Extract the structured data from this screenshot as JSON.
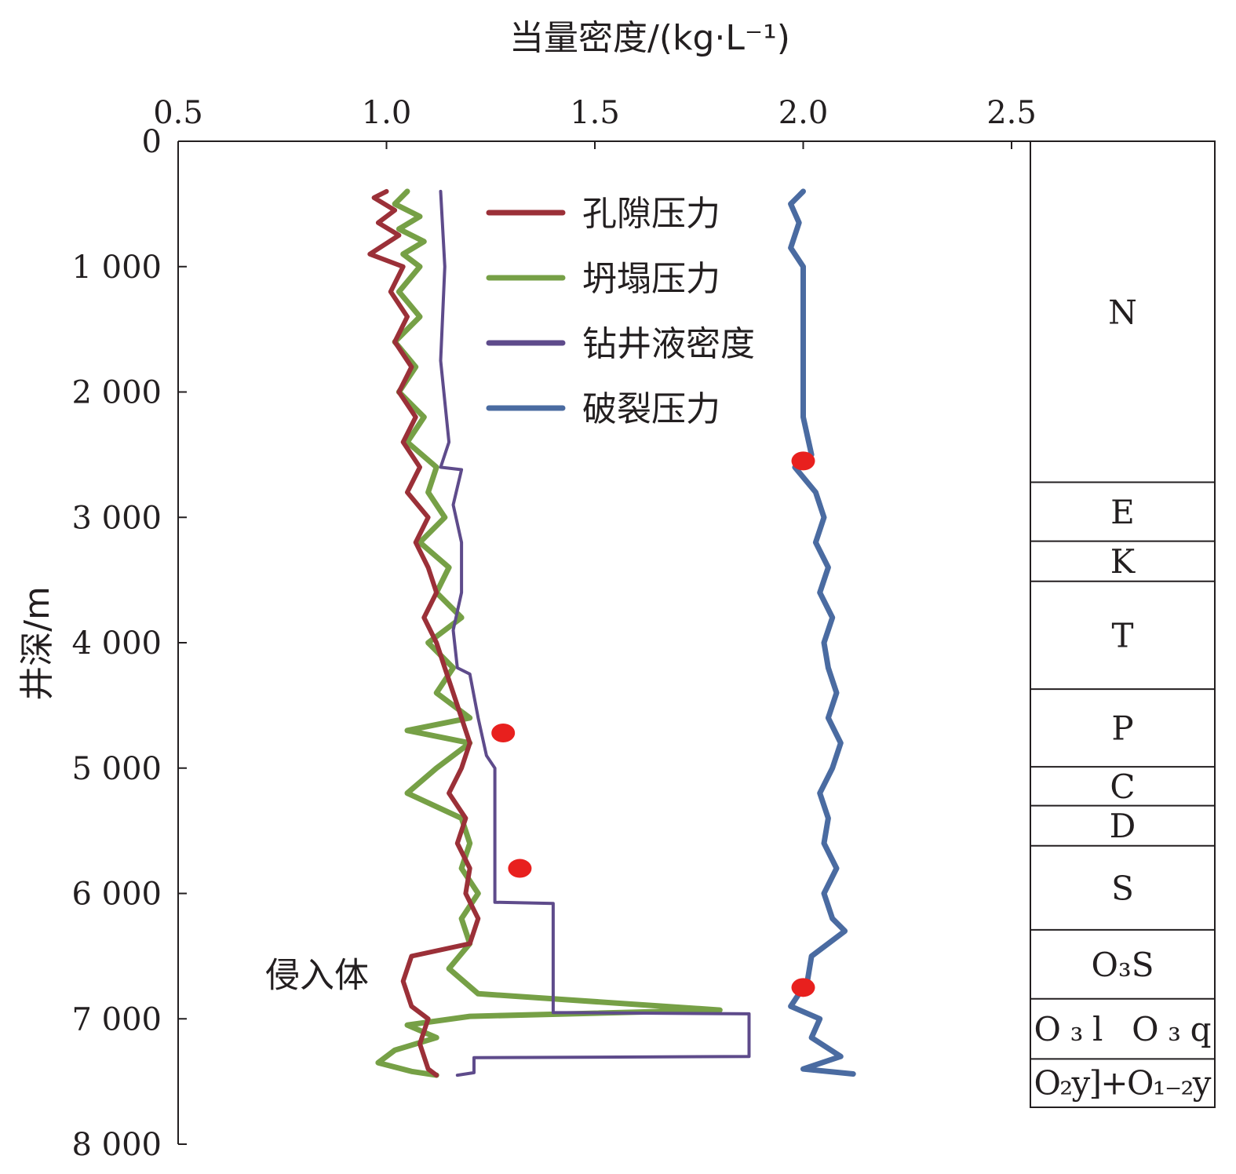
{
  "chart_data": {
    "type": "line",
    "orientation": "depth-vertical",
    "x_axis_position": "top",
    "y_axis_inverted": true,
    "title": "",
    "xlabel": "当量密度/(kg·L⁻¹)",
    "ylabel": "井深/m",
    "xlim": [
      0.5,
      2.5
    ],
    "ylim": [
      0,
      8000
    ],
    "xticks": [
      0.5,
      1.0,
      1.5,
      2.0,
      2.5
    ],
    "xtick_labels": [
      "0.5",
      "1.0",
      "1.5",
      "2.0",
      "2.5"
    ],
    "yticks": [
      0,
      1000,
      2000,
      3000,
      4000,
      5000,
      6000,
      7000,
      8000
    ],
    "ytick_labels": [
      "0",
      "1 000",
      "2 000",
      "3 000",
      "4 000",
      "5 000",
      "6 000",
      "7 000",
      "8 000"
    ],
    "legend_position": "top-center",
    "grid": false,
    "series": [
      {
        "name": "孔隙压力",
        "color": "#9b3038",
        "points": [
          [
            1.0,
            400
          ],
          [
            0.97,
            450
          ],
          [
            1.02,
            550
          ],
          [
            0.98,
            650
          ],
          [
            1.03,
            750
          ],
          [
            0.96,
            900
          ],
          [
            1.04,
            1000
          ],
          [
            1.01,
            1200
          ],
          [
            1.05,
            1400
          ],
          [
            1.02,
            1600
          ],
          [
            1.06,
            1800
          ],
          [
            1.03,
            2000
          ],
          [
            1.07,
            2200
          ],
          [
            1.04,
            2400
          ],
          [
            1.08,
            2600
          ],
          [
            1.05,
            2800
          ],
          [
            1.1,
            3000
          ],
          [
            1.07,
            3200
          ],
          [
            1.1,
            3400
          ],
          [
            1.12,
            3600
          ],
          [
            1.09,
            3800
          ],
          [
            1.12,
            4000
          ],
          [
            1.14,
            4200
          ],
          [
            1.16,
            4400
          ],
          [
            1.18,
            4600
          ],
          [
            1.2,
            4800
          ],
          [
            1.18,
            5000
          ],
          [
            1.15,
            5200
          ],
          [
            1.19,
            5400
          ],
          [
            1.17,
            5600
          ],
          [
            1.2,
            5800
          ],
          [
            1.19,
            6000
          ],
          [
            1.22,
            6200
          ],
          [
            1.2,
            6400
          ],
          [
            1.06,
            6500
          ],
          [
            1.04,
            6700
          ],
          [
            1.06,
            6900
          ],
          [
            1.1,
            7000
          ],
          [
            1.08,
            7200
          ],
          [
            1.1,
            7400
          ],
          [
            1.12,
            7450
          ]
        ]
      },
      {
        "name": "坍塌压力",
        "color": "#76a046",
        "points": [
          [
            1.05,
            400
          ],
          [
            1.02,
            500
          ],
          [
            1.08,
            600
          ],
          [
            1.03,
            700
          ],
          [
            1.09,
            800
          ],
          [
            1.04,
            900
          ],
          [
            1.08,
            1000
          ],
          [
            1.03,
            1200
          ],
          [
            1.08,
            1400
          ],
          [
            1.02,
            1600
          ],
          [
            1.07,
            1800
          ],
          [
            1.03,
            2000
          ],
          [
            1.09,
            2200
          ],
          [
            1.05,
            2400
          ],
          [
            1.12,
            2600
          ],
          [
            1.1,
            2800
          ],
          [
            1.14,
            3000
          ],
          [
            1.08,
            3200
          ],
          [
            1.15,
            3400
          ],
          [
            1.12,
            3600
          ],
          [
            1.18,
            3800
          ],
          [
            1.1,
            4000
          ],
          [
            1.16,
            4200
          ],
          [
            1.12,
            4400
          ],
          [
            1.2,
            4600
          ],
          [
            1.05,
            4700
          ],
          [
            1.2,
            4800
          ],
          [
            1.12,
            5000
          ],
          [
            1.05,
            5200
          ],
          [
            1.18,
            5400
          ],
          [
            1.2,
            5600
          ],
          [
            1.18,
            5800
          ],
          [
            1.22,
            6000
          ],
          [
            1.18,
            6200
          ],
          [
            1.2,
            6400
          ],
          [
            1.15,
            6600
          ],
          [
            1.22,
            6800
          ],
          [
            1.8,
            6930
          ],
          [
            1.2,
            6980
          ],
          [
            1.05,
            7050
          ],
          [
            1.12,
            7150
          ],
          [
            1.02,
            7250
          ],
          [
            0.98,
            7350
          ],
          [
            1.06,
            7420
          ],
          [
            1.12,
            7450
          ]
        ]
      },
      {
        "name": "钻井液密度",
        "color": "#5e4b8b",
        "points": [
          [
            1.13,
            400
          ],
          [
            1.14,
            1000
          ],
          [
            1.13,
            1750
          ],
          [
            1.15,
            2400
          ],
          [
            1.13,
            2600
          ],
          [
            1.18,
            2620
          ],
          [
            1.16,
            2900
          ],
          [
            1.18,
            3200
          ],
          [
            1.18,
            3600
          ],
          [
            1.16,
            3900
          ],
          [
            1.17,
            4200
          ],
          [
            1.2,
            4250
          ],
          [
            1.22,
            4600
          ],
          [
            1.24,
            4900
          ],
          [
            1.26,
            5000
          ],
          [
            1.26,
            6070
          ],
          [
            1.4,
            6080
          ],
          [
            1.4,
            6950
          ],
          [
            1.87,
            6960
          ],
          [
            1.87,
            7300
          ],
          [
            1.21,
            7310
          ],
          [
            1.21,
            7430
          ],
          [
            1.17,
            7450
          ]
        ]
      },
      {
        "name": "破裂压力",
        "color": "#4a6ba1",
        "points": [
          [
            2.0,
            400
          ],
          [
            1.97,
            500
          ],
          [
            1.99,
            650
          ],
          [
            1.97,
            850
          ],
          [
            2.0,
            1000
          ],
          [
            2.0,
            1400
          ],
          [
            2.0,
            1800
          ],
          [
            2.0,
            2200
          ],
          [
            2.02,
            2500
          ],
          [
            1.98,
            2600
          ],
          [
            2.03,
            2800
          ],
          [
            2.05,
            3000
          ],
          [
            2.03,
            3200
          ],
          [
            2.06,
            3400
          ],
          [
            2.04,
            3600
          ],
          [
            2.07,
            3800
          ],
          [
            2.05,
            4000
          ],
          [
            2.06,
            4200
          ],
          [
            2.08,
            4400
          ],
          [
            2.06,
            4600
          ],
          [
            2.09,
            4800
          ],
          [
            2.07,
            5000
          ],
          [
            2.04,
            5200
          ],
          [
            2.06,
            5400
          ],
          [
            2.05,
            5600
          ],
          [
            2.08,
            5800
          ],
          [
            2.05,
            6000
          ],
          [
            2.07,
            6200
          ],
          [
            2.1,
            6300
          ],
          [
            2.02,
            6500
          ],
          [
            2.01,
            6700
          ],
          [
            1.97,
            6900
          ],
          [
            2.04,
            7000
          ],
          [
            2.02,
            7150
          ],
          [
            2.09,
            7300
          ],
          [
            2.0,
            7400
          ],
          [
            2.12,
            7440
          ]
        ]
      }
    ],
    "markers": [
      {
        "x": 2.0,
        "y": 2550
      },
      {
        "x": 1.28,
        "y": 4720
      },
      {
        "x": 1.32,
        "y": 5800
      },
      {
        "x": 2.0,
        "y": 6750
      }
    ],
    "marker_color": "#e8201e",
    "annotations": [
      {
        "text": "侵入体",
        "x": 1.0,
        "y": 6620
      }
    ],
    "strata": [
      {
        "label": "N",
        "top": 0,
        "bottom": 2720
      },
      {
        "label": "E",
        "top": 2720,
        "bottom": 3190
      },
      {
        "label": "K",
        "top": 3190,
        "bottom": 3510
      },
      {
        "label": "T",
        "top": 3510,
        "bottom": 4370
      },
      {
        "label": "P",
        "top": 4370,
        "bottom": 4990
      },
      {
        "label": "C",
        "top": 4990,
        "bottom": 5300
      },
      {
        "label": "D",
        "top": 5300,
        "bottom": 5620
      },
      {
        "label": "S",
        "top": 5620,
        "bottom": 6290
      },
      {
        "label": "O₃S",
        "top": 6290,
        "bottom": 6840
      },
      {
        "label": "O₃l O₃q",
        "top": 6840,
        "bottom": 7320
      },
      {
        "label": "O₂y]+O₁₋₂y",
        "top": 7320,
        "bottom": 7700
      }
    ]
  }
}
